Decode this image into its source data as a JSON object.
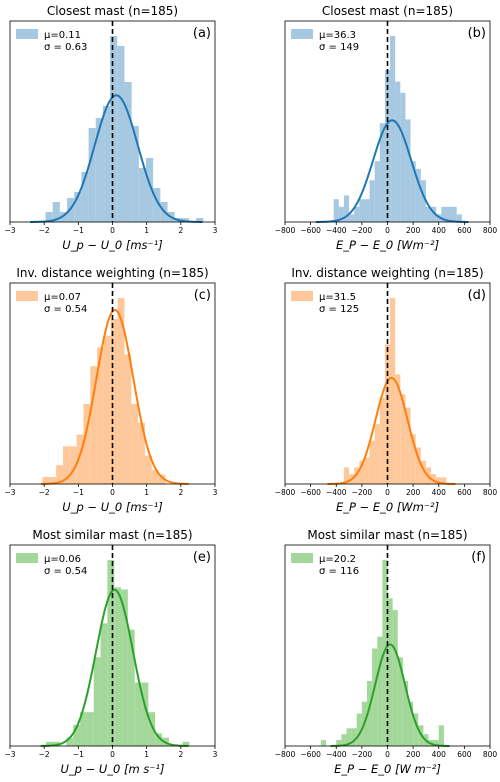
{
  "colors": {
    "blue": "#1f77b4",
    "orange": "#ff7f0e",
    "green": "#2ca02c"
  },
  "chart_data": [
    {
      "type": "histogram",
      "panel": "(a)",
      "title": "Closest mast (n=185)",
      "xlabel": "U_p − U_0  [ms⁻¹]",
      "xlim": [
        -3,
        3
      ],
      "xticks": [
        "−3",
        "−2",
        "−1",
        "0",
        "1",
        "2",
        "3"
      ],
      "color": "blue",
      "legend": {
        "mu": "μ=0.11",
        "sigma": "σ = 0.63"
      },
      "mu": 0.11,
      "sigma": 0.63,
      "bins": [
        -1.96,
        -1.75,
        -1.54,
        -1.33,
        -1.12,
        -0.91,
        -0.7,
        -0.49,
        -0.28,
        -0.07,
        0.14,
        0.35,
        0.56,
        0.77,
        0.98,
        1.19,
        1.4,
        1.61,
        1.82,
        2.03,
        2.24,
        2.45,
        2.66
      ],
      "density": [
        0.05,
        0.1,
        0.05,
        0.12,
        0.15,
        0.25,
        0.47,
        0.52,
        0.58,
        0.93,
        0.88,
        0.7,
        0.48,
        0.27,
        0.32,
        0.17,
        0.1,
        0.05,
        0.02,
        0.02,
        0.0,
        0.02
      ],
      "vline_x": 0
    },
    {
      "type": "histogram",
      "panel": "(b)",
      "title": "Closest mast (n=185)",
      "xlabel": "E_P − E_0  [Wm⁻²]",
      "xlim": [
        -800,
        800
      ],
      "xticks": [
        "−800",
        "−600",
        "−400",
        "−200",
        "0",
        "200",
        "400",
        "600",
        "800"
      ],
      "color": "blue",
      "legend": {
        "mu": "μ=36.3",
        "sigma": "σ = 149"
      },
      "mu": 36.3,
      "sigma": 149,
      "bins": [
        -420,
        -380,
        -340,
        -300,
        -260,
        -220,
        -180,
        -140,
        -100,
        -60,
        -20,
        20,
        60,
        100,
        140,
        180,
        220,
        260,
        300,
        340,
        380,
        420,
        460,
        500,
        540,
        580
      ],
      "density": [
        0.0006,
        0.0004,
        0.0007,
        0.0002,
        0.0004,
        0.0006,
        0.0006,
        0.0011,
        0.0016,
        0.0026,
        0.004,
        0.0049,
        0.0037,
        0.0034,
        0.0027,
        0.0016,
        0.0014,
        0.0011,
        0.0004,
        0.0004,
        0.0002,
        0.0004,
        0.0004,
        0.0004,
        0.0002
      ],
      "vline_x": 0
    },
    {
      "type": "histogram",
      "panel": "(c)",
      "title": "Inv. distance weighting (n=185)",
      "xlabel": "U_p − U_0  [ms⁻¹]",
      "xlim": [
        -3,
        3
      ],
      "xticks": [
        "−3",
        "−2",
        "−1",
        "0",
        "1",
        "2",
        "3"
      ],
      "color": "orange",
      "legend": {
        "mu": "μ=0.07",
        "sigma": "σ = 0.54"
      },
      "mu": 0.07,
      "sigma": 0.54,
      "bins": [
        -2.05,
        -1.85,
        -1.65,
        -1.45,
        -1.25,
        -1.05,
        -0.85,
        -0.65,
        -0.45,
        -0.25,
        -0.05,
        0.15,
        0.35,
        0.55,
        0.75,
        0.95,
        1.15,
        1.35,
        1.55
      ],
      "density": [
        0.03,
        0.03,
        0.08,
        0.16,
        0.16,
        0.21,
        0.34,
        0.5,
        0.58,
        0.63,
        0.7,
        0.79,
        0.55,
        0.34,
        0.26,
        0.12,
        0.06,
        0.04
      ],
      "vline_x": 0
    },
    {
      "type": "histogram",
      "panel": "(d)",
      "title": "Inv. distance weighting (n=185)",
      "xlabel": "E_P − E_0  [Wm⁻²]",
      "xlim": [
        -800,
        800
      ],
      "xticks": [
        "−800",
        "−600",
        "−400",
        "−200",
        "0",
        "200",
        "400",
        "600",
        "800"
      ],
      "color": "orange",
      "legend": {
        "mu": "μ=31.5",
        "sigma": "σ = 125"
      },
      "mu": 31.5,
      "sigma": 125,
      "bins": [
        -340,
        -300,
        -260,
        -220,
        -180,
        -140,
        -100,
        -60,
        -20,
        20,
        60,
        100,
        140,
        180,
        220,
        260,
        300,
        340,
        380,
        420,
        460
      ],
      "density": [
        0.0005,
        0.0003,
        0.0005,
        0.0007,
        0.0008,
        0.0013,
        0.0018,
        0.0026,
        0.0042,
        0.0056,
        0.0033,
        0.0027,
        0.0023,
        0.0015,
        0.0011,
        0.0007,
        0.0005,
        0.0003,
        0.0002,
        0.0002
      ],
      "vline_x": 0
    },
    {
      "type": "histogram",
      "panel": "(e)",
      "title": "Most similar mast (n=185)",
      "xlabel": "U_p − U_0  [m s⁻¹]",
      "xlim": [
        -3,
        3
      ],
      "xticks": [
        "−3",
        "−2",
        "−1",
        "0",
        "1",
        "2",
        "3"
      ],
      "color": "green",
      "legend": {
        "mu": "μ=0.06",
        "sigma": "σ = 0.54"
      },
      "mu": 0.06,
      "sigma": 0.54,
      "bins": [
        -1.95,
        -1.75,
        -1.55,
        -1.35,
        -1.15,
        -0.95,
        -0.75,
        -0.55,
        -0.35,
        -0.15,
        0.05,
        0.25,
        0.45,
        0.65,
        0.85,
        1.05,
        1.25,
        1.45,
        1.65,
        1.85,
        2.05,
        2.25
      ],
      "density": [
        0.02,
        0.02,
        0.0,
        0.04,
        0.1,
        0.16,
        0.16,
        0.42,
        0.58,
        0.88,
        0.75,
        0.74,
        0.55,
        0.3,
        0.3,
        0.16,
        0.06,
        0.04,
        0.0,
        0.0,
        0.02
      ],
      "vline_x": 0
    },
    {
      "type": "histogram",
      "panel": "(f)",
      "title": "Most similar mast (n=185)",
      "xlabel": "E_P − E_0  [W m⁻²]",
      "xlim": [
        -800,
        800
      ],
      "xticks": [
        "−800",
        "−600",
        "−400",
        "−200",
        "0",
        "200",
        "400",
        "600",
        "800"
      ],
      "color": "green",
      "legend": {
        "mu": "μ=20.2",
        "sigma": "σ = 116"
      },
      "mu": 20.2,
      "sigma": 116,
      "bins": [
        -520,
        -480,
        -440,
        -400,
        -360,
        -320,
        -280,
        -240,
        -200,
        -160,
        -120,
        -80,
        -40,
        0,
        40,
        80,
        120,
        160,
        200,
        240,
        280,
        320,
        360,
        400,
        440
      ],
      "density": [
        0.0002,
        0.0,
        0.0,
        0.0002,
        0.0004,
        0.0006,
        0.0006,
        0.0011,
        0.0015,
        0.0022,
        0.0033,
        0.0037,
        0.0063,
        0.005,
        0.0046,
        0.003,
        0.0022,
        0.0015,
        0.0011,
        0.0007,
        0.0004,
        0.0002,
        0.0002,
        0.0007
      ],
      "vline_x": 0
    }
  ]
}
